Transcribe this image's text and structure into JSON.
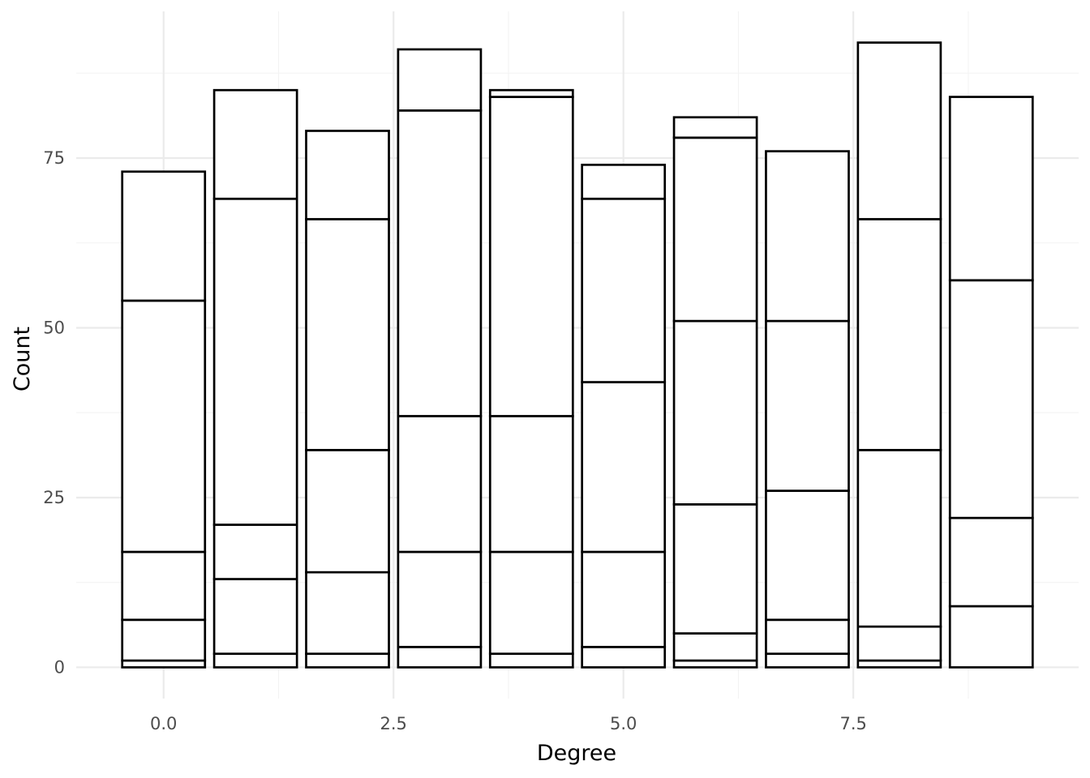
{
  "chart_data": {
    "type": "bar",
    "stacked": true,
    "xlabel": "Degree",
    "ylabel": "Count",
    "x": [
      0,
      1,
      2,
      3,
      4,
      5,
      6,
      7,
      8,
      9
    ],
    "xlim": [
      -0.95,
      9.95
    ],
    "ylim": [
      -4.6,
      96.6
    ],
    "x_ticks": [
      0.0,
      2.5,
      5.0,
      7.5
    ],
    "x_tick_labels": [
      "0.0",
      "2.5",
      "5.0",
      "7.5"
    ],
    "y_ticks": [
      0,
      25,
      50,
      75
    ],
    "y_tick_labels": [
      "0",
      "25",
      "50",
      "75"
    ],
    "grid": true,
    "fill_color": "#ffffff",
    "stroke_color": "#000000",
    "stack_boundaries": [
      [
        1,
        7,
        17,
        54,
        73
      ],
      [
        2,
        13,
        21,
        69,
        85
      ],
      [
        2,
        14,
        32,
        66,
        79
      ],
      [
        3,
        17,
        37,
        82,
        91
      ],
      [
        2,
        17,
        37,
        84,
        85
      ],
      [
        3,
        17,
        42,
        69,
        74
      ],
      [
        1,
        5,
        24,
        51,
        78,
        81
      ],
      [
        2,
        7,
        26,
        51,
        76
      ],
      [
        1,
        6,
        32,
        66,
        92
      ],
      [
        9,
        22,
        57,
        84
      ]
    ],
    "totals": [
      73,
      85,
      79,
      91,
      85,
      74,
      81,
      76,
      92,
      84
    ]
  }
}
